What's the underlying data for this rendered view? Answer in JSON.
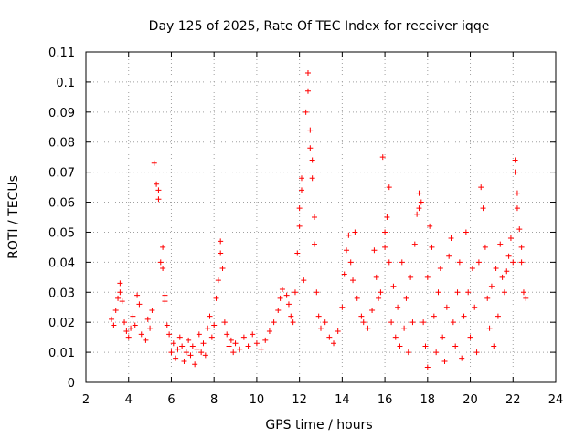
{
  "chart_data": {
    "type": "scatter",
    "title": "Day 125 of 2025, Rate Of TEC Index for receiver iqqe",
    "xlabel": "GPS time / hours",
    "ylabel": "ROTI / TECUs",
    "xlim": [
      2,
      24
    ],
    "ylim": [
      0,
      0.11
    ],
    "x_ticks": [
      "2",
      "4",
      "6",
      "8",
      "10",
      "12",
      "14",
      "16",
      "18",
      "20",
      "22",
      "24"
    ],
    "y_ticks": [
      "0",
      "0.01",
      "0.02",
      "0.03",
      "0.04",
      "0.05",
      "0.06",
      "0.07",
      "0.08",
      "0.09",
      "0.1",
      "0.11"
    ],
    "grid": true,
    "marker": "plus",
    "color": "#ff0000",
    "series": [
      {
        "points": [
          [
            3.2,
            0.021
          ],
          [
            3.3,
            0.019
          ],
          [
            3.4,
            0.024
          ],
          [
            3.5,
            0.028
          ],
          [
            3.6,
            0.033
          ],
          [
            3.6,
            0.03
          ],
          [
            3.7,
            0.027
          ],
          [
            3.8,
            0.02
          ],
          [
            3.9,
            0.017
          ],
          [
            4.0,
            0.015
          ],
          [
            4.1,
            0.018
          ],
          [
            4.2,
            0.022
          ],
          [
            4.3,
            0.019
          ],
          [
            4.4,
            0.029
          ],
          [
            4.5,
            0.026
          ],
          [
            4.6,
            0.016
          ],
          [
            4.8,
            0.014
          ],
          [
            4.9,
            0.021
          ],
          [
            5.0,
            0.018
          ],
          [
            5.1,
            0.024
          ],
          [
            5.2,
            0.073
          ],
          [
            5.3,
            0.066
          ],
          [
            5.4,
            0.064
          ],
          [
            5.4,
            0.061
          ],
          [
            5.5,
            0.04
          ],
          [
            5.6,
            0.045
          ],
          [
            5.6,
            0.038
          ],
          [
            5.7,
            0.029
          ],
          [
            5.7,
            0.027
          ],
          [
            5.8,
            0.019
          ],
          [
            5.9,
            0.016
          ],
          [
            6.0,
            0.01
          ],
          [
            6.1,
            0.013
          ],
          [
            6.2,
            0.008
          ],
          [
            6.3,
            0.011
          ],
          [
            6.4,
            0.015
          ],
          [
            6.5,
            0.012
          ],
          [
            6.6,
            0.007
          ],
          [
            6.7,
            0.01
          ],
          [
            6.8,
            0.014
          ],
          [
            6.9,
            0.009
          ],
          [
            7.0,
            0.012
          ],
          [
            7.1,
            0.006
          ],
          [
            7.2,
            0.011
          ],
          [
            7.3,
            0.016
          ],
          [
            7.4,
            0.01
          ],
          [
            7.5,
            0.013
          ],
          [
            7.6,
            0.009
          ],
          [
            7.7,
            0.018
          ],
          [
            7.8,
            0.022
          ],
          [
            7.9,
            0.015
          ],
          [
            8.0,
            0.019
          ],
          [
            8.1,
            0.028
          ],
          [
            8.2,
            0.034
          ],
          [
            8.3,
            0.043
          ],
          [
            8.3,
            0.047
          ],
          [
            8.4,
            0.038
          ],
          [
            8.5,
            0.02
          ],
          [
            8.6,
            0.016
          ],
          [
            8.7,
            0.012
          ],
          [
            8.8,
            0.014
          ],
          [
            8.9,
            0.01
          ],
          [
            9.0,
            0.013
          ],
          [
            9.2,
            0.011
          ],
          [
            9.4,
            0.015
          ],
          [
            9.6,
            0.012
          ],
          [
            9.8,
            0.016
          ],
          [
            10.0,
            0.013
          ],
          [
            10.2,
            0.011
          ],
          [
            10.4,
            0.014
          ],
          [
            10.6,
            0.017
          ],
          [
            10.8,
            0.02
          ],
          [
            11.0,
            0.024
          ],
          [
            11.1,
            0.028
          ],
          [
            11.2,
            0.031
          ],
          [
            11.4,
            0.029
          ],
          [
            11.5,
            0.026
          ],
          [
            11.6,
            0.022
          ],
          [
            11.7,
            0.02
          ],
          [
            11.8,
            0.03
          ],
          [
            11.9,
            0.043
          ],
          [
            12.0,
            0.052
          ],
          [
            12.0,
            0.058
          ],
          [
            12.1,
            0.064
          ],
          [
            12.1,
            0.068
          ],
          [
            12.2,
            0.034
          ],
          [
            12.3,
            0.09
          ],
          [
            12.4,
            0.103
          ],
          [
            12.4,
            0.097
          ],
          [
            12.5,
            0.084
          ],
          [
            12.5,
            0.078
          ],
          [
            12.6,
            0.074
          ],
          [
            12.6,
            0.068
          ],
          [
            12.7,
            0.055
          ],
          [
            12.7,
            0.046
          ],
          [
            12.8,
            0.03
          ],
          [
            12.9,
            0.022
          ],
          [
            13.0,
            0.018
          ],
          [
            13.2,
            0.02
          ],
          [
            13.4,
            0.015
          ],
          [
            13.6,
            0.013
          ],
          [
            13.8,
            0.017
          ],
          [
            14.0,
            0.025
          ],
          [
            14.1,
            0.036
          ],
          [
            14.2,
            0.044
          ],
          [
            14.3,
            0.049
          ],
          [
            14.4,
            0.04
          ],
          [
            14.5,
            0.034
          ],
          [
            14.6,
            0.05
          ],
          [
            14.7,
            0.028
          ],
          [
            14.9,
            0.022
          ],
          [
            15.0,
            0.02
          ],
          [
            15.2,
            0.018
          ],
          [
            15.4,
            0.024
          ],
          [
            15.5,
            0.044
          ],
          [
            15.6,
            0.035
          ],
          [
            15.7,
            0.028
          ],
          [
            15.8,
            0.03
          ],
          [
            15.9,
            0.075
          ],
          [
            16.0,
            0.05
          ],
          [
            16.0,
            0.045
          ],
          [
            16.1,
            0.055
          ],
          [
            16.2,
            0.04
          ],
          [
            16.2,
            0.065
          ],
          [
            16.3,
            0.02
          ],
          [
            16.4,
            0.032
          ],
          [
            16.5,
            0.015
          ],
          [
            16.6,
            0.025
          ],
          [
            16.7,
            0.012
          ],
          [
            16.8,
            0.04
          ],
          [
            16.9,
            0.018
          ],
          [
            17.0,
            0.028
          ],
          [
            17.1,
            0.01
          ],
          [
            17.2,
            0.035
          ],
          [
            17.3,
            0.02
          ],
          [
            17.4,
            0.046
          ],
          [
            17.5,
            0.056
          ],
          [
            17.6,
            0.063
          ],
          [
            17.6,
            0.058
          ],
          [
            17.7,
            0.06
          ],
          [
            17.8,
            0.02
          ],
          [
            17.9,
            0.012
          ],
          [
            18.0,
            0.005
          ],
          [
            18.0,
            0.035
          ],
          [
            18.1,
            0.052
          ],
          [
            18.2,
            0.045
          ],
          [
            18.3,
            0.022
          ],
          [
            18.4,
            0.01
          ],
          [
            18.5,
            0.03
          ],
          [
            18.6,
            0.038
          ],
          [
            18.7,
            0.015
          ],
          [
            18.8,
            0.007
          ],
          [
            18.9,
            0.025
          ],
          [
            19.0,
            0.042
          ],
          [
            19.1,
            0.048
          ],
          [
            19.2,
            0.02
          ],
          [
            19.3,
            0.012
          ],
          [
            19.4,
            0.03
          ],
          [
            19.5,
            0.04
          ],
          [
            19.6,
            0.008
          ],
          [
            19.7,
            0.022
          ],
          [
            19.8,
            0.05
          ],
          [
            19.9,
            0.03
          ],
          [
            20.0,
            0.015
          ],
          [
            20.1,
            0.038
          ],
          [
            20.2,
            0.025
          ],
          [
            20.3,
            0.01
          ],
          [
            20.4,
            0.04
          ],
          [
            20.5,
            0.065
          ],
          [
            20.6,
            0.058
          ],
          [
            20.7,
            0.045
          ],
          [
            20.8,
            0.028
          ],
          [
            20.9,
            0.018
          ],
          [
            21.0,
            0.032
          ],
          [
            21.1,
            0.012
          ],
          [
            21.2,
            0.038
          ],
          [
            21.3,
            0.022
          ],
          [
            21.4,
            0.046
          ],
          [
            21.5,
            0.035
          ],
          [
            21.6,
            0.03
          ],
          [
            21.7,
            0.037
          ],
          [
            21.8,
            0.042
          ],
          [
            21.9,
            0.048
          ],
          [
            22.0,
            0.04
          ],
          [
            22.1,
            0.074
          ],
          [
            22.1,
            0.07
          ],
          [
            22.2,
            0.063
          ],
          [
            22.2,
            0.058
          ],
          [
            22.3,
            0.051
          ],
          [
            22.4,
            0.045
          ],
          [
            22.4,
            0.04
          ],
          [
            22.5,
            0.03
          ],
          [
            22.6,
            0.028
          ]
        ]
      }
    ]
  }
}
